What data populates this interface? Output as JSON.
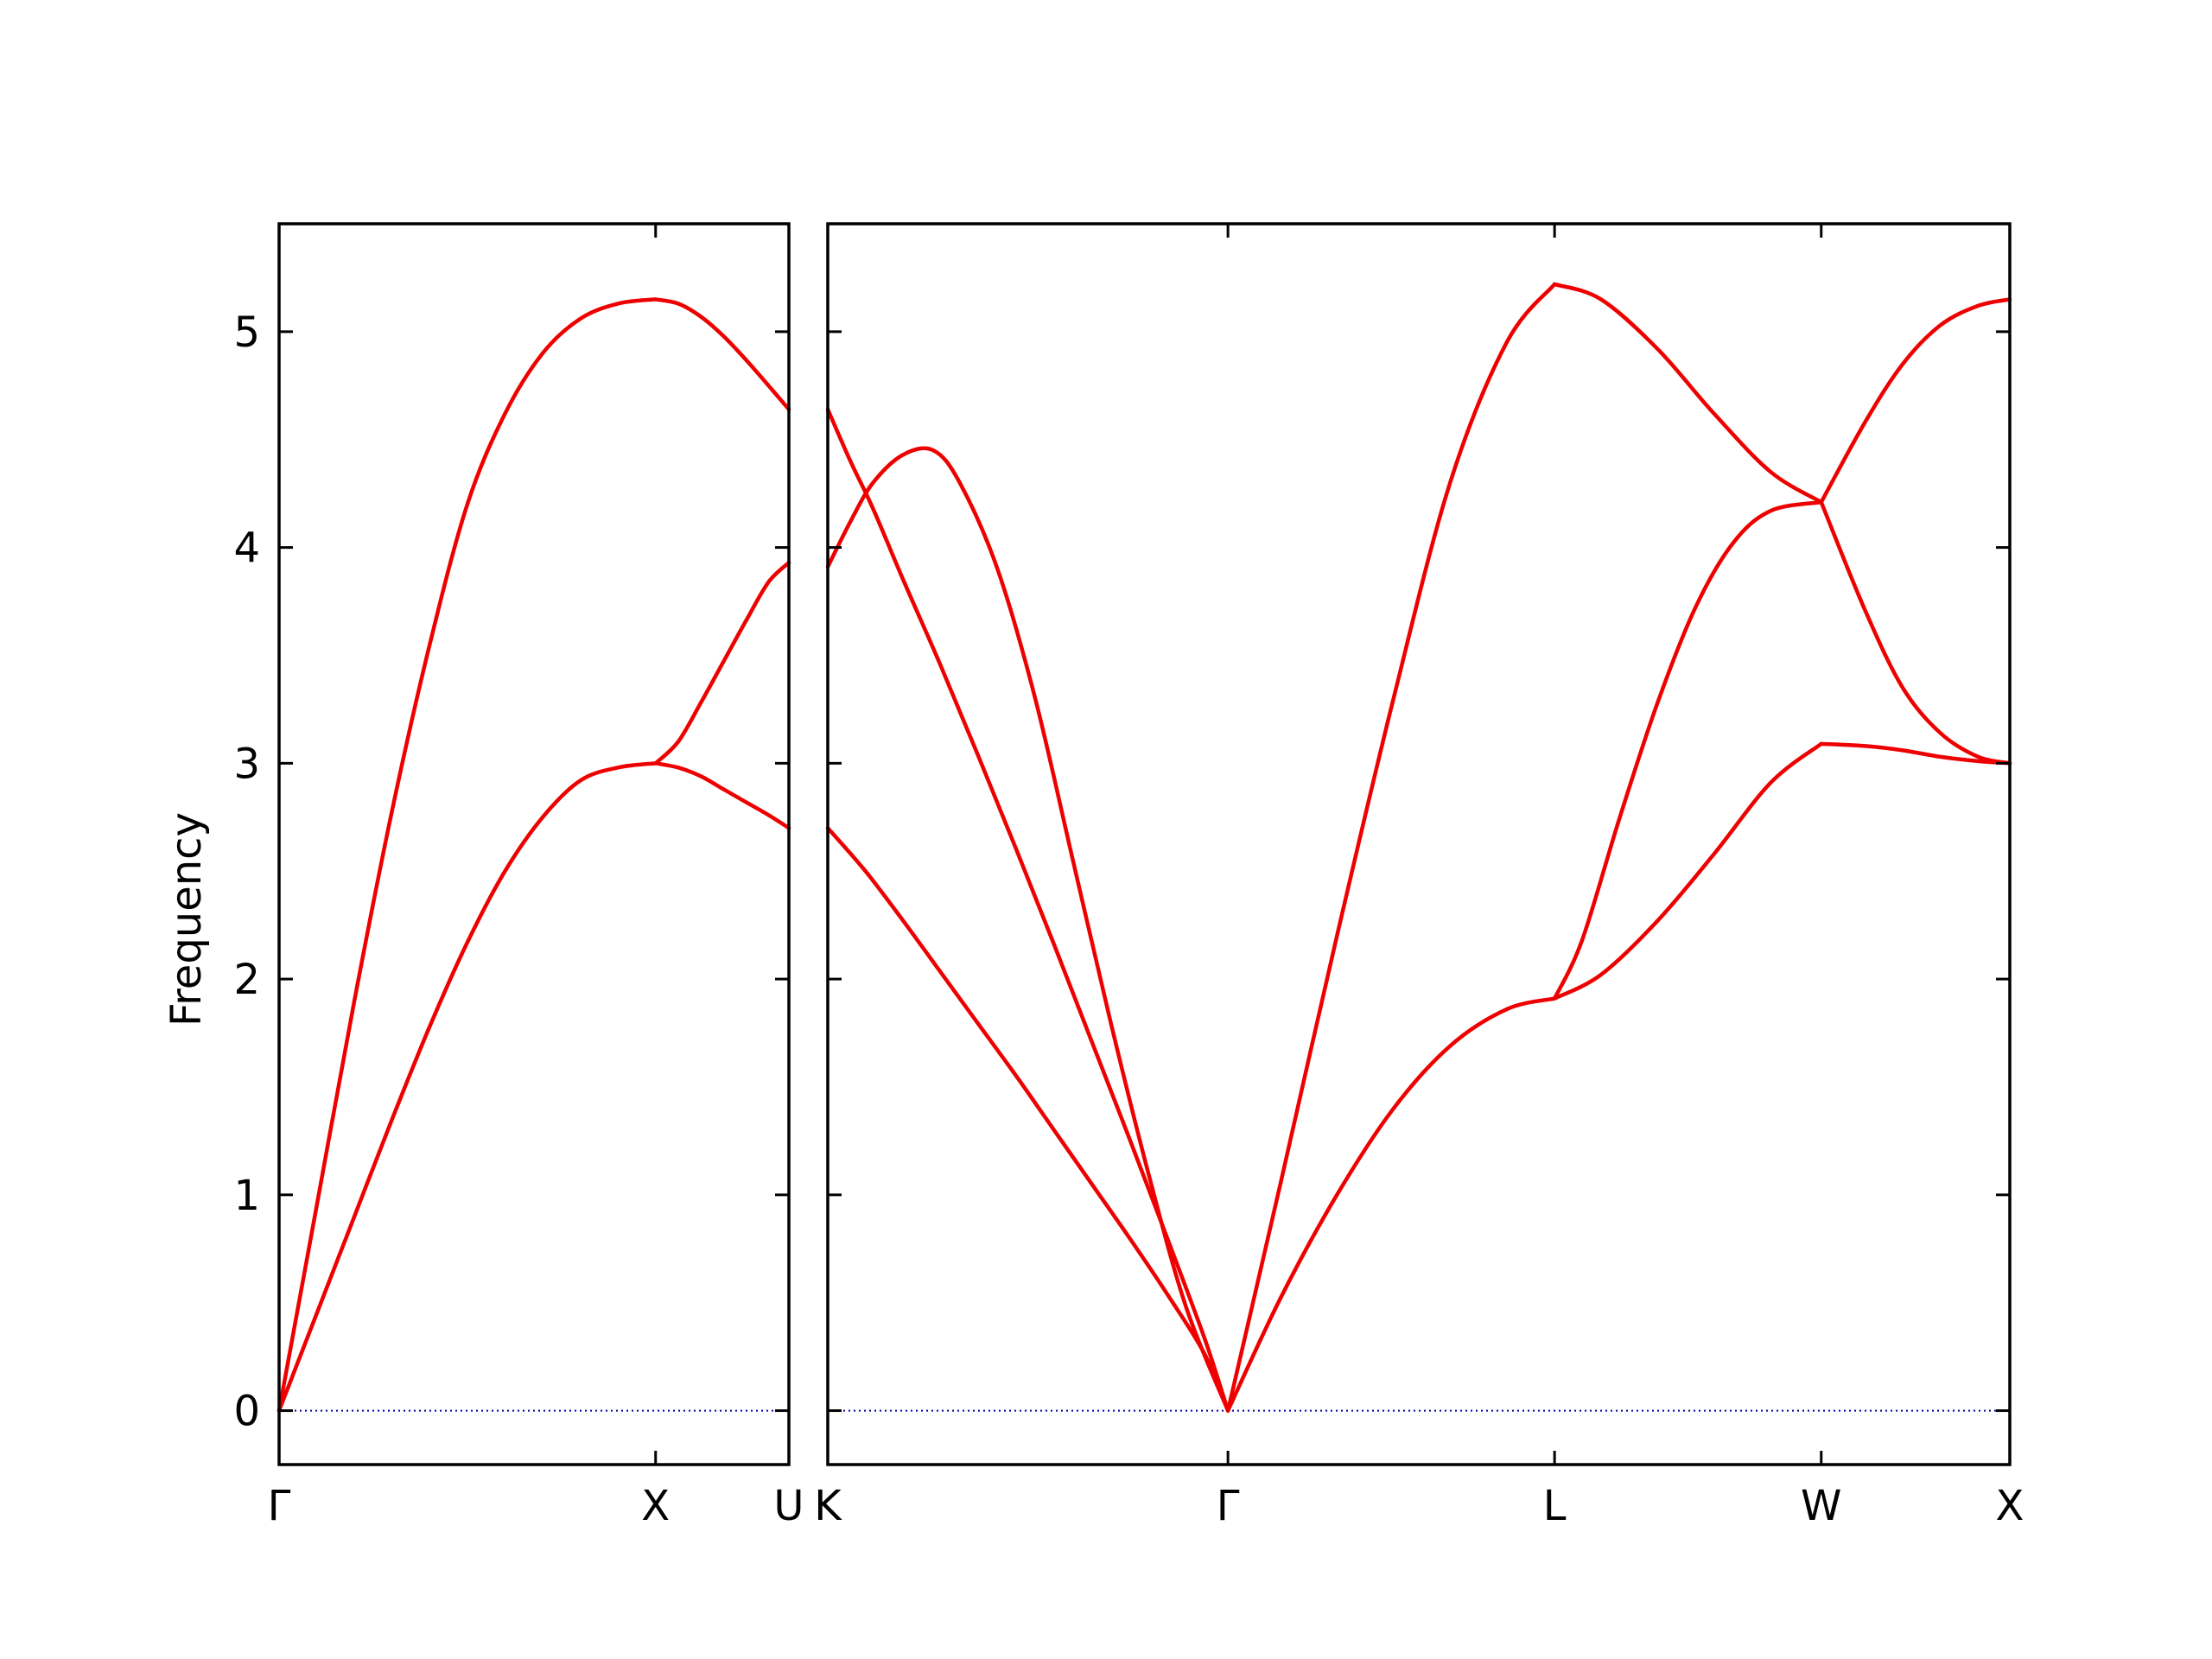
{
  "chart_data": {
    "type": "line",
    "ylabel": "Frequency",
    "ylim": [
      -0.25,
      5.5
    ],
    "yticks": [
      "0",
      "1",
      "2",
      "3",
      "4",
      "5"
    ],
    "grid": false,
    "line_color": "#ee0000",
    "zero_line_color": "#0000aa",
    "panels": [
      {
        "xticks": [
          {
            "pos": 0,
            "label": "Γ"
          },
          {
            "pos": 1,
            "label": "X"
          },
          {
            "pos": 1.354,
            "label": "U"
          }
        ],
        "xlim": [
          0,
          1.354
        ],
        "series": [
          {
            "x": [
              0,
              0.1,
              0.2,
              0.3,
              0.4,
              0.5,
              0.6,
              0.7,
              0.8,
              0.9,
              1.0
            ],
            "y": [
              0,
              0.45,
              0.9,
              1.35,
              1.78,
              2.17,
              2.5,
              2.75,
              2.92,
              2.98,
              3.0
            ]
          },
          {
            "x": [
              0,
              0.1,
              0.2,
              0.3,
              0.4,
              0.5,
              0.6,
              0.7,
              0.8,
              0.9,
              1.0
            ],
            "y": [
              0,
              0.95,
              1.9,
              2.78,
              3.55,
              4.2,
              4.62,
              4.9,
              5.06,
              5.13,
              5.15
            ]
          },
          {
            "x": [
              1.0,
              1.06,
              1.12,
              1.18,
              1.24,
              1.3,
              1.354
            ],
            "y": [
              3.0,
              3.1,
              3.28,
              3.47,
              3.66,
              3.84,
              3.93
            ]
          },
          {
            "x": [
              1.0,
              1.06,
              1.12,
              1.18,
              1.24,
              1.3,
              1.354
            ],
            "y": [
              3.0,
              2.98,
              2.94,
              2.88,
              2.82,
              2.76,
              2.7
            ]
          },
          {
            "x": [
              1.0,
              1.06,
              1.12,
              1.18,
              1.24,
              1.3,
              1.354
            ],
            "y": [
              5.15,
              5.13,
              5.07,
              4.98,
              4.87,
              4.75,
              4.64
            ]
          }
        ]
      },
      {
        "xticks": [
          {
            "pos": 0,
            "label": "K"
          },
          {
            "pos": 1.061,
            "label": "Γ"
          },
          {
            "pos": 1.927,
            "label": "L"
          },
          {
            "pos": 2.634,
            "label": "W"
          },
          {
            "pos": 3.134,
            "label": "X"
          }
        ],
        "xlim": [
          0,
          3.134
        ],
        "series": [
          {
            "x": [
              0,
              0.1,
              0.2,
              0.3,
              0.4,
              0.5,
              0.6,
              0.7,
              0.8,
              0.9,
              1.0,
              1.061
            ],
            "y": [
              2.7,
              2.5,
              2.27,
              2.03,
              1.79,
              1.55,
              1.3,
              1.05,
              0.8,
              0.54,
              0.26,
              0
            ]
          },
          {
            "x": [
              0,
              0.06,
              0.12,
              0.2,
              0.3,
              0.4,
              0.5,
              0.6,
              0.7,
              0.8,
              0.9,
              1.0,
              1.061
            ],
            "y": [
              4.64,
              4.4,
              4.18,
              3.85,
              3.45,
              3.03,
              2.6,
              2.16,
              1.71,
              1.26,
              0.8,
              0.33,
              0
            ]
          },
          {
            "x": [
              0,
              0.06,
              0.12,
              0.2,
              0.28,
              0.35,
              0.45,
              0.55,
              0.65,
              0.75,
              0.85,
              0.95,
              1.061
            ],
            "y": [
              3.91,
              4.12,
              4.3,
              4.43,
              4.45,
              4.3,
              3.9,
              3.3,
              2.55,
              1.8,
              1.1,
              0.48,
              0
            ]
          },
          {
            "x": [
              1.061,
              1.2,
              1.35,
              1.5,
              1.65,
              1.8,
              1.927
            ],
            "y": [
              0,
              0.52,
              1.0,
              1.4,
              1.69,
              1.86,
              1.91
            ]
          },
          {
            "x": [
              1.061,
              1.2,
              1.35,
              1.5,
              1.65,
              1.8,
              1.927
            ],
            "y": [
              0,
              1.05,
              2.2,
              3.3,
              4.3,
              4.95,
              5.22
            ]
          },
          {
            "x": [
              1.927,
              2.05,
              2.2,
              2.35,
              2.5,
              2.634
            ],
            "y": [
              1.91,
              2.02,
              2.27,
              2.58,
              2.91,
              3.09
            ]
          },
          {
            "x": [
              1.927,
              2.0,
              2.1,
              2.2,
              2.3,
              2.4,
              2.5,
              2.634
            ],
            "y": [
              1.91,
              2.18,
              2.75,
              3.28,
              3.72,
              4.02,
              4.17,
              4.21
            ]
          },
          {
            "x": [
              1.927,
              2.05,
              2.2,
              2.35,
              2.5,
              2.634
            ],
            "y": [
              5.22,
              5.15,
              4.92,
              4.62,
              4.35,
              4.21
            ]
          },
          {
            "x": [
              2.634,
              2.75,
              2.85,
              2.95,
              3.05,
              3.134
            ],
            "y": [
              3.09,
              3.08,
              3.06,
              3.03,
              3.01,
              3.0
            ]
          },
          {
            "x": [
              2.634,
              2.75,
              2.85,
              2.95,
              3.05,
              3.134
            ],
            "y": [
              4.21,
              3.71,
              3.35,
              3.14,
              3.03,
              3.0
            ]
          },
          {
            "x": [
              2.634,
              2.75,
              2.85,
              2.95,
              3.05,
              3.134
            ],
            "y": [
              4.21,
              4.58,
              4.85,
              5.03,
              5.12,
              5.15
            ]
          }
        ]
      }
    ]
  }
}
